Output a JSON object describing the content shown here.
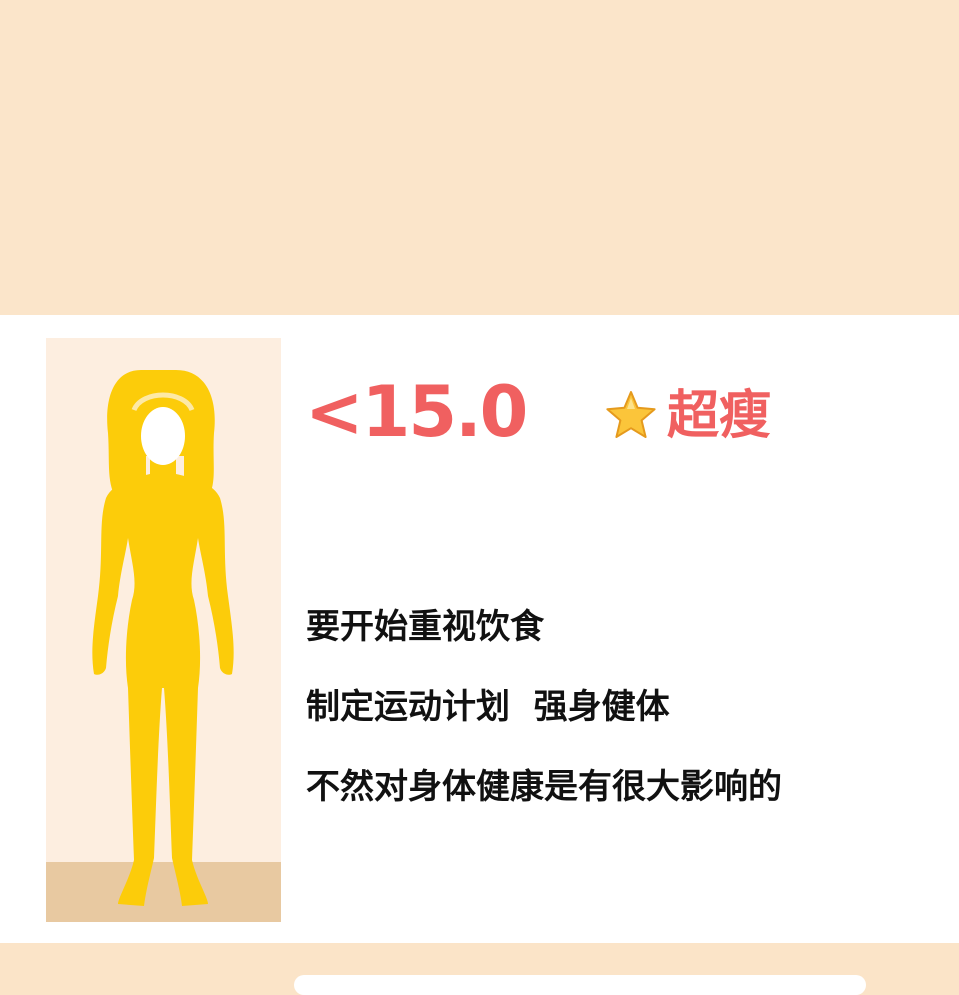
{
  "category": {
    "range_text": "<15.0",
    "icon": "star-icon",
    "label": "超瘦"
  },
  "advice": [
    "要开始重视饮食",
    "制定运动计划  强身健体",
    "不然对身体健康是有很大影响的"
  ],
  "colors": {
    "accent": "#f06060",
    "figure": "#fccc0a",
    "background": "#fbe5ca",
    "panel": "#fdeee0",
    "floor": "#e8c9a1"
  }
}
